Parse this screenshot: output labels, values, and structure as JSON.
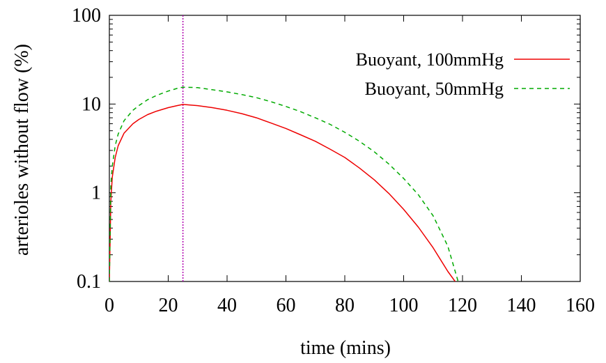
{
  "chart_data": {
    "type": "line",
    "title": "",
    "xlabel": "time (mins)",
    "ylabel": "arterioles without flow (%)",
    "xlim": [
      0,
      160
    ],
    "ylim": [
      0.1,
      100
    ],
    "yscale": "log",
    "xticks": [
      0,
      20,
      40,
      60,
      80,
      100,
      120,
      140,
      160
    ],
    "xtick_labels": [
      "0",
      "20",
      "40",
      "60",
      "80",
      "100",
      "120",
      "140",
      "160"
    ],
    "yticks": [
      0.1,
      1,
      10,
      100
    ],
    "ytick_labels": [
      "0.1",
      "1",
      "10",
      "100"
    ],
    "grid": false,
    "legend_position": "top-right",
    "vline": {
      "x": 25,
      "color": "#b000b0",
      "style": "dotted"
    },
    "series": [
      {
        "name": "Buoyant, 100mmHg",
        "color": "#ee0000",
        "style": "solid",
        "x": [
          0,
          0.5,
          1,
          2,
          3,
          5,
          8,
          10,
          13,
          16,
          20,
          23,
          25,
          30,
          35,
          40,
          45,
          50,
          55,
          60,
          65,
          70,
          75,
          80,
          85,
          90,
          95,
          100,
          105,
          110,
          115,
          117.5
        ],
        "y": [
          0.1,
          0.8,
          1.5,
          2.5,
          3.4,
          4.7,
          6.0,
          6.7,
          7.6,
          8.3,
          9.1,
          9.6,
          9.9,
          9.6,
          9.1,
          8.5,
          7.8,
          7.0,
          6.1,
          5.3,
          4.5,
          3.8,
          3.1,
          2.5,
          1.9,
          1.4,
          0.98,
          0.65,
          0.41,
          0.24,
          0.13,
          0.1
        ]
      },
      {
        "name": "Buoyant, 50mmHg",
        "color": "#00aa00",
        "style": "dashed",
        "x": [
          0,
          0.5,
          1,
          2,
          3,
          5,
          8,
          10,
          13,
          16,
          20,
          23,
          25,
          30,
          35,
          40,
          45,
          50,
          55,
          60,
          65,
          70,
          75,
          80,
          85,
          90,
          95,
          100,
          105,
          110,
          115,
          118.5
        ],
        "y": [
          0.1,
          1.2,
          2.0,
          3.4,
          4.6,
          6.5,
          8.5,
          9.6,
          11.2,
          12.5,
          14.0,
          15.0,
          15.5,
          15.3,
          14.5,
          13.7,
          12.8,
          11.8,
          10.6,
          9.4,
          8.2,
          7.0,
          5.9,
          4.8,
          3.8,
          2.9,
          2.1,
          1.45,
          0.95,
          0.55,
          0.25,
          0.1
        ]
      }
    ]
  }
}
